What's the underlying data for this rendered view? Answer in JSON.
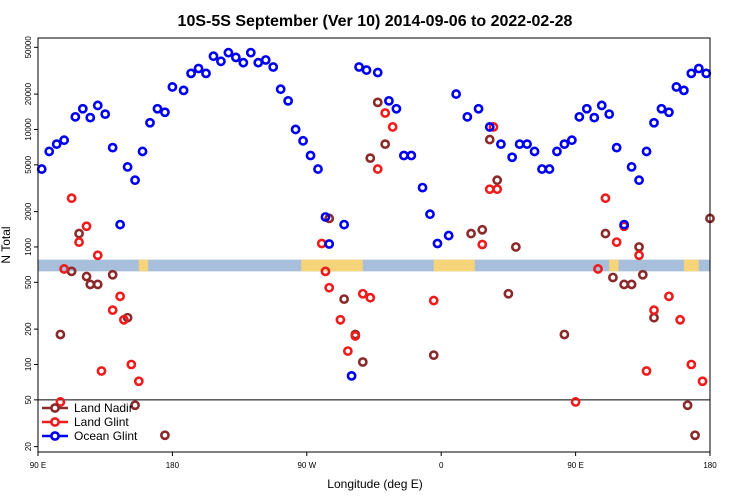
{
  "chart_data": {
    "type": "scatter",
    "title": "10S-5S September (Ver 10)   2014-09-06 to 2022-02-28",
    "xlabel": "Longitude (deg E)",
    "ylabel": "N Total",
    "xlim": [
      90,
      270
    ],
    "ylim": [
      18,
      60000
    ],
    "yscale": "log",
    "grid": false,
    "x_ticks": [
      {
        "value": 90,
        "label": "90 E"
      },
      {
        "value": 126,
        "label": "180"
      },
      {
        "value": 162,
        "label": "90 W"
      },
      {
        "value": 198,
        "label": "0"
      },
      {
        "value": 234,
        "label": "90 E"
      },
      {
        "value": 270,
        "label": "180"
      }
    ],
    "y_ticks": [
      {
        "value": 20,
        "label": "20"
      },
      {
        "value": 50,
        "label": "50"
      },
      {
        "value": 100,
        "label": "100"
      },
      {
        "value": 200,
        "label": "200"
      },
      {
        "value": 500,
        "label": "500"
      },
      {
        "value": 1000,
        "label": "1000"
      },
      {
        "value": 2000,
        "label": "2000"
      },
      {
        "value": 5000,
        "label": "5000"
      },
      {
        "value": 10000,
        "label": "10000"
      },
      {
        "value": 20000,
        "label": "20000"
      },
      {
        "value": 50000,
        "label": "50000"
      }
    ],
    "legend_placement": "bottom-left",
    "band": {
      "y_low": 620,
      "y_high": 780,
      "color": "#a8bfdc",
      "land_color": "#f5d47a"
    },
    "land_segments": [
      [
        117,
        119.5
      ],
      [
        160.5,
        177
      ],
      [
        196,
        207
      ],
      [
        243,
        245.5
      ],
      [
        263,
        267
      ]
    ],
    "separator_y": 50,
    "series": [
      {
        "name": "Land Nadir",
        "color": "#8b2a2a",
        "x": [
          96,
          99,
          101,
          103,
          104,
          106,
          110,
          114,
          116,
          124,
          168,
          172,
          175,
          177,
          179,
          181,
          183,
          196,
          206,
          209,
          211,
          213,
          216,
          218,
          231,
          242,
          244,
          247,
          249,
          251,
          252,
          255,
          264,
          266,
          270
        ],
        "y": [
          180,
          620,
          1300,
          560,
          480,
          480,
          580,
          250,
          45,
          25,
          1750,
          360,
          180,
          105,
          5700,
          17000,
          7500,
          120,
          1300,
          1400,
          8200,
          3700,
          400,
          1000,
          180,
          1300,
          550,
          480,
          480,
          1000,
          580,
          250,
          45,
          25,
          1750
        ]
      },
      {
        "name": "Land Glint",
        "color": "#ee1c1c",
        "x": [
          96,
          97,
          99,
          101,
          103,
          106,
          107,
          110,
          112,
          113,
          115,
          117,
          166,
          167,
          168,
          171,
          173,
          175,
          177,
          179,
          181,
          183,
          185,
          196,
          209,
          211,
          212,
          213,
          234,
          240,
          242,
          245,
          247,
          251,
          253,
          255,
          259,
          262,
          265,
          268
        ],
        "y": [
          48,
          650,
          2600,
          1100,
          1500,
          850,
          88,
          290,
          380,
          240,
          100,
          72,
          1070,
          620,
          450,
          240,
          130,
          175,
          400,
          370,
          4600,
          13800,
          10500,
          350,
          1050,
          3100,
          10500,
          3100,
          48,
          650,
          2600,
          1100,
          1500,
          850,
          88,
          290,
          380,
          240,
          100,
          72
        ]
      },
      {
        "name": "Ocean Glint",
        "color": "#0000ee",
        "x": [
          91,
          93,
          95,
          97,
          100,
          102,
          104,
          106,
          108,
          110,
          112,
          114,
          116,
          118,
          120,
          122,
          124,
          126,
          129,
          131,
          133,
          135,
          137,
          139,
          141,
          143,
          145,
          147,
          149,
          151,
          153,
          155,
          157,
          159,
          161,
          163,
          165,
          167,
          168,
          172,
          174,
          176,
          178,
          181,
          184,
          186,
          188,
          190,
          193,
          195,
          197,
          200,
          202,
          205,
          208,
          211,
          214,
          217,
          219,
          221,
          223,
          225,
          227,
          229,
          231,
          233,
          235,
          237,
          239,
          241,
          243,
          245,
          247,
          249,
          251,
          253,
          255,
          257,
          259,
          261,
          263,
          265,
          267,
          269
        ],
        "y": [
          4600,
          6500,
          7500,
          8100,
          12800,
          15000,
          12600,
          16000,
          13500,
          7000,
          1550,
          4800,
          3700,
          6500,
          11400,
          15000,
          14000,
          23000,
          21500,
          30000,
          33000,
          30000,
          42000,
          38000,
          45000,
          41000,
          37000,
          45000,
          37000,
          39000,
          34000,
          22000,
          17500,
          10000,
          8000,
          6000,
          4600,
          1800,
          1060,
          1550,
          80,
          34000,
          32000,
          30500,
          17500,
          15000,
          6000,
          6000,
          3200,
          1900,
          1070,
          1250,
          20000,
          12800,
          15000,
          10500,
          7500,
          5800,
          7500,
          7500,
          6500,
          4600,
          4600,
          6500,
          7500,
          8100,
          12800,
          15000,
          12600,
          16000,
          13500,
          7000,
          1550,
          4800,
          3700,
          6500,
          11400,
          15000,
          14000,
          23000,
          21500,
          30000,
          33000,
          30000
        ]
      }
    ]
  }
}
